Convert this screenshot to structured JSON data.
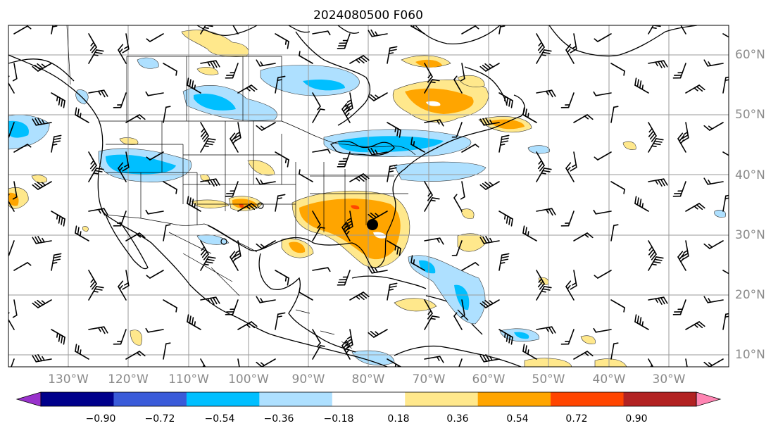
{
  "title": "2024080500 F060",
  "map": {
    "lon_labels": [
      "130°W",
      "120°W",
      "110°W",
      "100°W",
      "90°W",
      "80°W",
      "70°W",
      "60°W",
      "50°W",
      "40°W",
      "30°W"
    ],
    "lat_labels": [
      "60°N",
      "50°N",
      "40°N",
      "30°N",
      "20°N",
      "10°N"
    ],
    "grid_color": "#9a9a9a",
    "point_marker": {
      "lon": -79,
      "lat": 32,
      "color": "#000000"
    }
  },
  "colorbar": {
    "ticks": [
      "−0.90",
      "−0.72",
      "−0.54",
      "−0.36",
      "−0.18",
      "0.18",
      "0.36",
      "0.54",
      "0.72",
      "0.90"
    ],
    "colors": [
      "#9932cc",
      "#00008b",
      "#3a5bd9",
      "#00bfff",
      "#aee0ff",
      "#ffffff",
      "#ffe88c",
      "#ffa500",
      "#ff4500",
      "#b22222",
      "#ff85b3"
    ],
    "extend": "both"
  },
  "anomaly_colors": {
    "light_blue": "#aee0ff",
    "blue": "#00bfff",
    "light_yellow": "#ffe88c",
    "orange": "#ffa500",
    "red": "#ff4500"
  }
}
